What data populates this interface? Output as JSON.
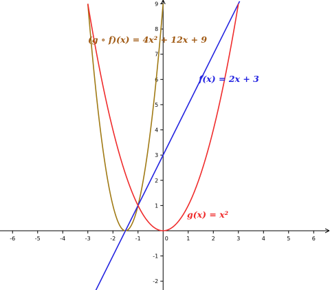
{
  "chart_data": {
    "type": "line",
    "title": "",
    "xlabel": "",
    "ylabel": "",
    "xlim": [
      -6.5,
      6.65
    ],
    "ylim": [
      -2.35,
      9.15
    ],
    "grid": false,
    "x_ticks": [
      -6,
      -5,
      -4,
      -3,
      -2,
      -1,
      0,
      1,
      2,
      3,
      4,
      5,
      6
    ],
    "x_tick_labels": [
      "-6",
      "-5",
      "-4",
      "-3",
      "-2",
      "-1",
      "0",
      "1",
      "2",
      "3",
      "4",
      "5",
      "6"
    ],
    "y_ticks": [
      -2,
      -1,
      1,
      2,
      3,
      4,
      5,
      6,
      7,
      8,
      9
    ],
    "y_tick_labels": [
      "-2",
      "-1",
      "1",
      "2",
      "3",
      "4",
      "5",
      "6",
      "7",
      "8",
      "9"
    ],
    "series": [
      {
        "name": "(g ∘ f)(x) = 4x² + 12x + 9",
        "color": "#a07a14",
        "x": [
          -3.0,
          -2.5,
          -2.0,
          -1.5,
          -1.0,
          -0.5,
          0.0
        ],
        "values": [
          9.0,
          4.0,
          1.0,
          0.0,
          1.0,
          4.0,
          9.0
        ]
      },
      {
        "name": "f(x) = 2x + 3",
        "color": "#2323e0",
        "x": [
          -2.7,
          3.05
        ],
        "values": [
          -2.4,
          9.1
        ]
      },
      {
        "name": "g(x) = x²",
        "color": "#ef2b2b",
        "x": [
          -3.0,
          -2.0,
          -1.0,
          0.0,
          1.0,
          2.0,
          3.0
        ],
        "values": [
          9.0,
          4.0,
          1.0,
          0.0,
          1.0,
          4.0,
          9.0
        ]
      }
    ],
    "labels": {
      "gof": "(g ∘ f)(x) = 4x² + 12x + 9",
      "f": "f(x) = 2x + 3",
      "g": "g(x) = x²"
    }
  }
}
